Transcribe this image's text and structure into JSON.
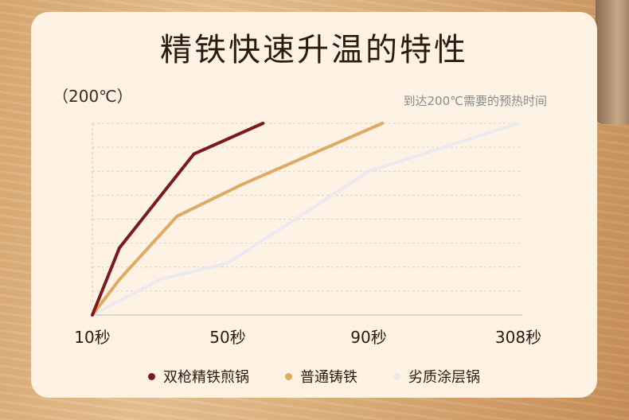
{
  "title": "精铁快速升温的特性",
  "chart_data": {
    "type": "line",
    "unit_label": "（200℃）",
    "note": "到达200℃需要的预热时间",
    "x_ticks": [
      "10秒",
      "50秒",
      "90秒",
      "308秒"
    ],
    "y_max_label": "200℃",
    "series": [
      {
        "name": "双枪精铁煎锅",
        "color": "#7a1a1a",
        "points": [
          [
            10,
            0
          ],
          [
            18,
            70
          ],
          [
            40,
            168
          ],
          [
            60,
            200
          ]
        ]
      },
      {
        "name": "普通铸铁",
        "color": "#e0aa64",
        "points": [
          [
            10,
            0
          ],
          [
            18,
            37
          ],
          [
            35,
            103
          ],
          [
            54,
            136
          ],
          [
            110,
            200
          ]
        ]
      },
      {
        "name": "劣质涂层锅",
        "color": "#ece8ef",
        "points": [
          [
            10,
            0
          ],
          [
            30,
            37
          ],
          [
            50,
            54
          ],
          [
            90,
            150
          ],
          [
            308,
            200
          ]
        ]
      }
    ]
  }
}
